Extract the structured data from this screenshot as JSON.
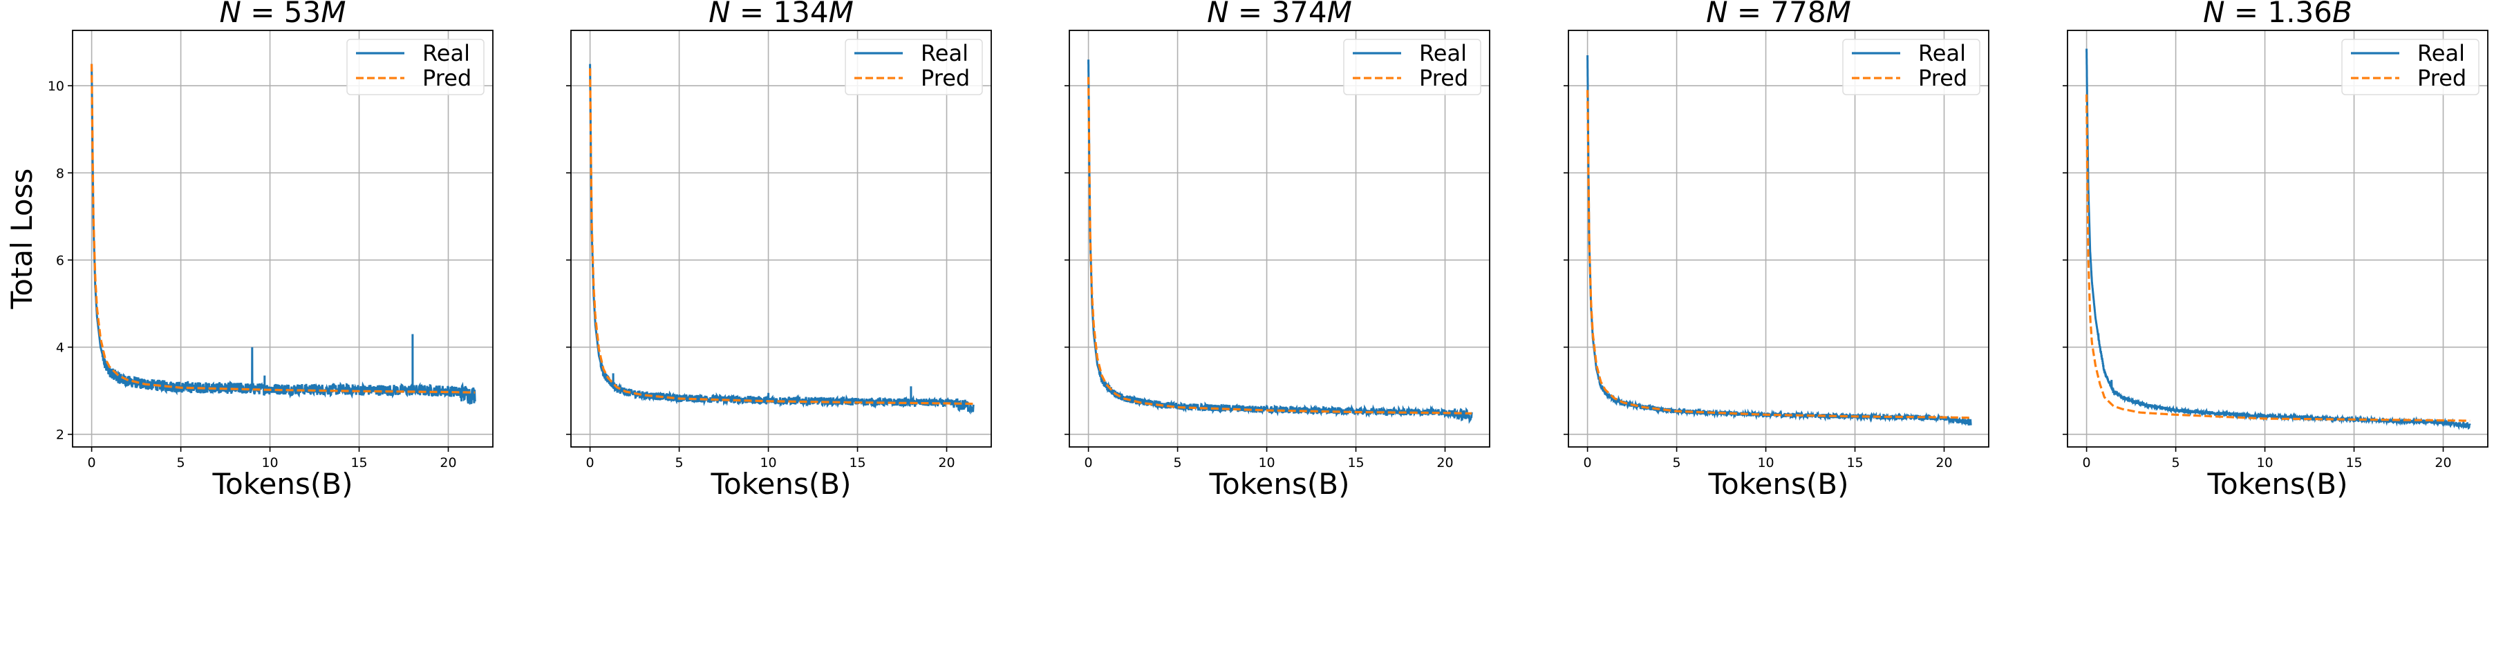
{
  "chart_data": [
    {
      "type": "line",
      "title": "N = 53M",
      "xlabel": "Tokens(B)",
      "ylabel": "Total Loss",
      "xlim": [
        -1.07,
        22.5
      ],
      "ylim": [
        1.71,
        11.27
      ],
      "xticks": [
        0,
        5,
        10,
        15,
        20
      ],
      "yticks": [
        2,
        4,
        6,
        8,
        10
      ],
      "show_ytick_labels": true,
      "grid": true,
      "legend": "top-right",
      "x": [
        0,
        0.05,
        0.1,
        0.2,
        0.3,
        0.5,
        0.75,
        1,
        1.5,
        2,
        3,
        5,
        10,
        15,
        20,
        21.5
      ],
      "series": [
        {
          "name": "Real",
          "style": "solid",
          "color": "#1f77b4",
          "values": [
            10.5,
            8.5,
            6.8,
            5.4,
            4.7,
            4.0,
            3.6,
            3.45,
            3.3,
            3.22,
            3.15,
            3.08,
            3.04,
            3.02,
            3.0,
            2.9
          ],
          "spikes": [
            [
              9.0,
              4.0
            ],
            [
              9.7,
              3.35
            ],
            [
              18.0,
              4.3
            ]
          ]
        },
        {
          "name": "Pred",
          "style": "dashed",
          "color": "#ff7f0e",
          "values": [
            10.5,
            8.6,
            7.0,
            5.6,
            4.9,
            4.2,
            3.75,
            3.55,
            3.35,
            3.25,
            3.15,
            3.07,
            3.02,
            2.99,
            2.97,
            2.96
          ]
        }
      ]
    },
    {
      "type": "line",
      "title": "N = 134M",
      "xlabel": "Tokens(B)",
      "ylabel": "",
      "xlim": [
        -1.07,
        22.5
      ],
      "ylim": [
        1.71,
        11.27
      ],
      "xticks": [
        0,
        5,
        10,
        15,
        20
      ],
      "yticks": [
        2,
        4,
        6,
        8,
        10
      ],
      "show_ytick_labels": false,
      "grid": true,
      "legend": "top-right",
      "x": [
        0,
        0.05,
        0.1,
        0.2,
        0.3,
        0.5,
        0.75,
        1,
        1.5,
        2,
        3,
        5,
        10,
        15,
        20,
        21.5
      ],
      "series": [
        {
          "name": "Real",
          "style": "solid",
          "color": "#1f77b4",
          "values": [
            10.5,
            8.3,
            6.6,
            5.2,
            4.5,
            3.8,
            3.4,
            3.25,
            3.05,
            2.97,
            2.9,
            2.83,
            2.78,
            2.75,
            2.72,
            2.63
          ],
          "spikes": [
            [
              1.3,
              3.4
            ],
            [
              18.0,
              3.1
            ],
            [
              10.0,
              2.95
            ]
          ]
        },
        {
          "name": "Pred",
          "style": "dashed",
          "color": "#ff7f0e",
          "values": [
            10.4,
            8.4,
            6.8,
            5.4,
            4.7,
            3.95,
            3.5,
            3.3,
            3.08,
            2.98,
            2.9,
            2.82,
            2.76,
            2.73,
            2.71,
            2.7
          ]
        }
      ]
    },
    {
      "type": "line",
      "title": "N = 374M",
      "xlabel": "Tokens(B)",
      "ylabel": "",
      "xlim": [
        -1.07,
        22.5
      ],
      "ylim": [
        1.71,
        11.27
      ],
      "xticks": [
        0,
        5,
        10,
        15,
        20
      ],
      "yticks": [
        2,
        4,
        6,
        8,
        10
      ],
      "show_ytick_labels": false,
      "grid": true,
      "legend": "top-right",
      "x": [
        0,
        0.05,
        0.1,
        0.2,
        0.3,
        0.5,
        0.75,
        1,
        1.5,
        2,
        3,
        5,
        10,
        15,
        20,
        21.5
      ],
      "series": [
        {
          "name": "Real",
          "style": "solid",
          "color": "#1f77b4",
          "values": [
            10.6,
            8.2,
            6.5,
            5.0,
            4.3,
            3.6,
            3.25,
            3.1,
            2.92,
            2.83,
            2.74,
            2.64,
            2.57,
            2.53,
            2.5,
            2.42
          ],
          "spikes": []
        },
        {
          "name": "Pred",
          "style": "dashed",
          "color": "#ff7f0e",
          "values": [
            10.2,
            8.2,
            6.6,
            5.2,
            4.5,
            3.75,
            3.35,
            3.15,
            2.93,
            2.82,
            2.72,
            2.62,
            2.55,
            2.51,
            2.49,
            2.48
          ]
        }
      ]
    },
    {
      "type": "line",
      "title": "N = 778M",
      "xlabel": "Tokens(B)",
      "ylabel": "",
      "xlim": [
        -1.07,
        22.5
      ],
      "ylim": [
        1.71,
        11.27
      ],
      "xticks": [
        0,
        5,
        10,
        15,
        20
      ],
      "yticks": [
        2,
        4,
        6,
        8,
        10
      ],
      "show_ytick_labels": false,
      "grid": true,
      "legend": "top-right",
      "x": [
        0,
        0.05,
        0.1,
        0.2,
        0.3,
        0.5,
        0.75,
        1,
        1.5,
        2,
        3,
        5,
        10,
        15,
        20,
        21.5
      ],
      "series": [
        {
          "name": "Real",
          "style": "solid",
          "color": "#1f77b4",
          "values": [
            10.7,
            8.2,
            6.4,
            4.9,
            4.2,
            3.5,
            3.1,
            2.95,
            2.8,
            2.72,
            2.63,
            2.53,
            2.45,
            2.41,
            2.37,
            2.27
          ],
          "spikes": []
        },
        {
          "name": "Pred",
          "style": "dashed",
          "color": "#ff7f0e",
          "values": [
            9.9,
            8.0,
            6.4,
            5.0,
            4.3,
            3.6,
            3.2,
            3.02,
            2.83,
            2.73,
            2.63,
            2.53,
            2.45,
            2.41,
            2.39,
            2.38
          ]
        }
      ]
    },
    {
      "type": "line",
      "title": "N = 1.36B",
      "xlabel": "Tokens(B)",
      "ylabel": "",
      "xlim": [
        -1.07,
        22.5
      ],
      "ylim": [
        1.71,
        11.27
      ],
      "xticks": [
        0,
        5,
        10,
        15,
        20
      ],
      "yticks": [
        2,
        4,
        6,
        8,
        10
      ],
      "show_ytick_labels": false,
      "grid": true,
      "legend": "top-right",
      "x": [
        0,
        0.05,
        0.1,
        0.2,
        0.3,
        0.5,
        0.75,
        1,
        1.5,
        2,
        3,
        5,
        10,
        15,
        20,
        21.5
      ],
      "series": [
        {
          "name": "Real",
          "style": "solid",
          "color": "#1f77b4",
          "values": [
            10.85,
            9.0,
            7.6,
            6.2,
            5.5,
            4.67,
            4.0,
            3.43,
            2.99,
            2.85,
            2.7,
            2.55,
            2.41,
            2.34,
            2.27,
            2.19
          ],
          "spikes": [
            [
              1.4,
              3.25
            ]
          ]
        },
        {
          "name": "Pred",
          "style": "dashed",
          "color": "#ff7f0e",
          "values": [
            9.8,
            7.5,
            6.0,
            4.7,
            4.1,
            3.58,
            3.15,
            2.85,
            2.65,
            2.58,
            2.5,
            2.45,
            2.36,
            2.34,
            2.32,
            2.31
          ]
        }
      ]
    }
  ]
}
